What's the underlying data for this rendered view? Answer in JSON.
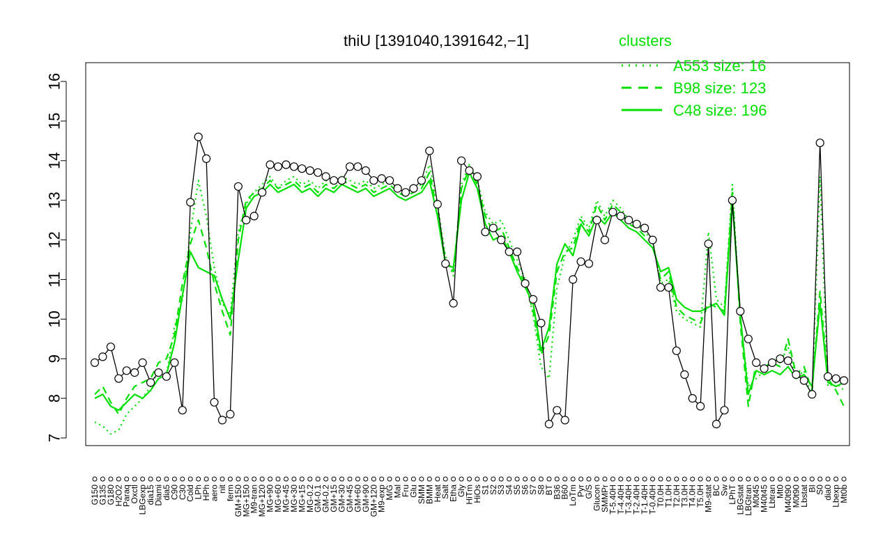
{
  "chart_data": {
    "type": "line",
    "title": "thiU [1391040,1391642,−1]",
    "ylim": [
      7,
      16
    ],
    "yticks": [
      7,
      8,
      9,
      10,
      11,
      12,
      13,
      14,
      15,
      16
    ],
    "grid": false,
    "legend": {
      "placement": "top-right",
      "title": "clusters",
      "entries": [
        {
          "label": "A553 size: 16",
          "style": "dotted"
        },
        {
          "label": "B98 size: 123",
          "style": "dashed"
        },
        {
          "label": "C48 size: 196",
          "style": "solid"
        }
      ]
    },
    "x_labels": [
      "G150",
      "G135",
      "G180",
      "H2O2",
      "Paraq",
      "Oxctl",
      "LBGexp",
      "dia15",
      "Diami",
      "dia5",
      "C90",
      "C30",
      "Cold",
      "LPh",
      "HPh",
      "aero",
      "nit",
      "ferm",
      "GM+150",
      "MG+150",
      "M9-tran",
      "MG+120",
      "MG+90",
      "MG+60",
      "MG+45",
      "MG+30",
      "MG+15",
      "MG-0.2",
      "GM-0.1",
      "GM-0.2",
      "GM+15",
      "GM+30",
      "GM+45",
      "GM+60",
      "GM+90",
      "GM+120",
      "M9-exp",
      "M/G",
      "Mal",
      "Fru",
      "Glu",
      "SMM",
      "BMM",
      "Heat",
      "Salt",
      "Etha",
      "Gly",
      "HiTm",
      "HiOs",
      "S1",
      "S2",
      "S3",
      "S4",
      "S5",
      "S6",
      "S7",
      "S8",
      "BT",
      "B36",
      "B60",
      "LoTm",
      "Pyr",
      "G/S",
      "Glucon",
      "SMMPr",
      "T-5.40H",
      "T-4.40H",
      "T-3.40H",
      "T-2.40H",
      "T-1.40H",
      "T-0.40H",
      "T0.0H",
      "T1.0H",
      "T2.0H",
      "T3.0H",
      "T4.0H",
      "T5.0H",
      "M9-stat",
      "BC",
      "Sw",
      "LPhT",
      "LBGstat",
      "LBGtran",
      "M0t45",
      "M40t45",
      "Lbtran",
      "Mt0",
      "M40t90",
      "M0t90",
      "Lbstat",
      "BI",
      "S0",
      "dia0",
      "Lbexp",
      "Mt0b"
    ],
    "series": [
      {
        "name": "",
        "style": "solid",
        "color": "#000000",
        "values": [
          8.9,
          9.05,
          9.3,
          8.5,
          8.7,
          8.65,
          8.9,
          8.4,
          8.65,
          8.55,
          8.9,
          7.7,
          12.95,
          14.6,
          14.05,
          7.9,
          7.45,
          7.6,
          13.35,
          12.5,
          12.6,
          13.2,
          13.9,
          13.85,
          13.9,
          13.85,
          13.8,
          13.75,
          13.7,
          13.6,
          13.5,
          13.5,
          13.85,
          13.85,
          13.75,
          13.5,
          13.55,
          13.5,
          13.3,
          13.2,
          13.3,
          13.5,
          14.25,
          12.9,
          11.4,
          10.4,
          14.0,
          13.75,
          13.6,
          12.2,
          12.3,
          12.0,
          11.7,
          11.7,
          10.9,
          10.5,
          9.9,
          7.35,
          7.7,
          7.45,
          11.0,
          11.45,
          11.4,
          12.5,
          12.0,
          12.7,
          12.6,
          12.5,
          12.4,
          12.3,
          12.0,
          10.8,
          10.8,
          9.2,
          8.6,
          8.0,
          7.8,
          11.9,
          7.35,
          7.7,
          13.0,
          10.2,
          9.5,
          8.9,
          8.75,
          8.9,
          9.0,
          8.95,
          8.6,
          8.45,
          8.1,
          14.45,
          8.55,
          8.5,
          8.45
        ]
      },
      {
        "name": "",
        "style": "solid",
        "color": "#00e000",
        "values": [
          8.0,
          8.1,
          7.8,
          7.7,
          7.9,
          8.1,
          8.0,
          8.2,
          8.5,
          8.6,
          9.4,
          10.6,
          11.7,
          11.3,
          11.2,
          11.1,
          10.5,
          10.0,
          11.5,
          12.8,
          13.1,
          13.2,
          13.4,
          13.2,
          13.3,
          13.4,
          13.2,
          13.3,
          13.1,
          13.3,
          13.2,
          13.4,
          13.3,
          13.2,
          13.3,
          13.1,
          13.2,
          13.3,
          13.1,
          13.0,
          13.1,
          13.2,
          13.5,
          12.6,
          11.4,
          11.3,
          13.0,
          13.7,
          13.3,
          12.4,
          12.0,
          12.1,
          11.7,
          11.2,
          10.8,
          10.4,
          9.2,
          9.8,
          11.4,
          11.9,
          11.6,
          12.4,
          12.1,
          12.6,
          12.4,
          12.7,
          12.5,
          12.3,
          12.2,
          12.0,
          11.8,
          11.2,
          11.3,
          10.5,
          10.3,
          10.2,
          10.2,
          10.3,
          10.4,
          10.1,
          13.0,
          10.1,
          8.1,
          8.7,
          8.6,
          8.7,
          8.6,
          8.8,
          8.5,
          8.6,
          8.3,
          10.4,
          8.4,
          8.3,
          8.4
        ]
      },
      {
        "name": "",
        "style": "dashed",
        "color": "#00e000",
        "values": [
          8.1,
          8.3,
          7.9,
          7.6,
          8.0,
          8.3,
          8.4,
          8.5,
          8.9,
          9.0,
          9.6,
          10.9,
          11.9,
          12.5,
          11.8,
          10.9,
          10.2,
          9.6,
          12.0,
          13.0,
          13.2,
          13.3,
          13.5,
          13.3,
          13.4,
          13.5,
          13.3,
          13.4,
          13.2,
          13.4,
          13.3,
          13.5,
          13.4,
          13.3,
          13.4,
          13.2,
          13.3,
          13.4,
          13.2,
          13.1,
          13.2,
          13.3,
          13.7,
          12.7,
          11.5,
          11.2,
          13.3,
          13.8,
          13.4,
          12.6,
          12.2,
          12.3,
          11.8,
          11.3,
          10.9,
          10.2,
          9.1,
          9.6,
          11.2,
          11.7,
          11.8,
          12.5,
          12.2,
          12.9,
          12.5,
          12.9,
          12.7,
          12.4,
          12.3,
          12.1,
          11.9,
          11.0,
          11.2,
          10.3,
          10.1,
          10.0,
          9.9,
          10.4,
          10.3,
          10.2,
          13.2,
          9.9,
          7.8,
          8.9,
          8.8,
          8.9,
          8.8,
          9.5,
          8.6,
          8.8,
          8.2,
          10.7,
          8.5,
          8.2,
          7.8
        ]
      },
      {
        "name": "",
        "style": "dotted",
        "color": "#00e000",
        "values": [
          7.4,
          7.3,
          7.1,
          7.2,
          7.6,
          7.8,
          8.0,
          8.3,
          8.7,
          8.6,
          9.8,
          10.5,
          12.2,
          13.5,
          12.6,
          11.3,
          10.4,
          10.1,
          12.2,
          12.9,
          13.2,
          13.4,
          13.6,
          13.3,
          13.5,
          13.6,
          13.4,
          13.5,
          13.3,
          13.5,
          13.4,
          13.6,
          13.5,
          13.4,
          13.5,
          13.3,
          13.4,
          13.5,
          13.3,
          13.2,
          13.3,
          13.4,
          13.9,
          12.9,
          11.6,
          11.1,
          13.4,
          13.9,
          13.5,
          12.7,
          12.4,
          12.5,
          12.0,
          11.5,
          11.0,
          10.1,
          8.8,
          8.5,
          10.8,
          11.6,
          12.0,
          12.6,
          12.3,
          13.0,
          12.6,
          13.0,
          12.8,
          12.5,
          12.4,
          12.2,
          12.0,
          10.9,
          11.0,
          10.2,
          10.0,
          9.9,
          9.8,
          12.2,
          10.5,
          10.3,
          13.4,
          10.0,
          8.3,
          8.5,
          8.7,
          9.0,
          8.9,
          9.3,
          8.5,
          8.7,
          8.0,
          13.6,
          8.3,
          8.4,
          8.2
        ]
      }
    ]
  }
}
